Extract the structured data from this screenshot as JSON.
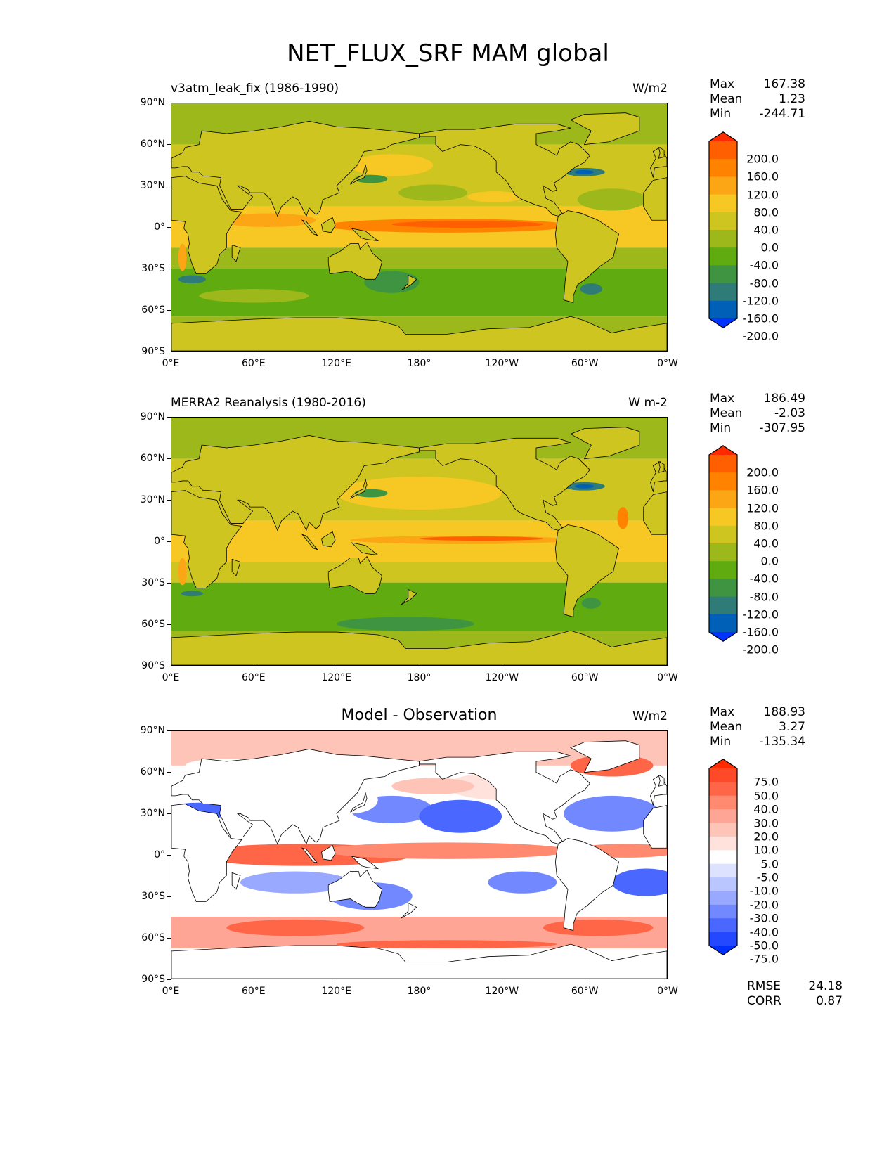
{
  "title": "NET_FLUX_SRF MAM global",
  "axes": {
    "x_ticks": [
      "0°E",
      "60°E",
      "120°E",
      "180°",
      "120°W",
      "60°W",
      "0°W"
    ],
    "y_ticks": [
      "90°N",
      "60°N",
      "30°N",
      "0°",
      "30°S",
      "60°S",
      "90°S"
    ]
  },
  "panels": [
    {
      "title": "v3atm_leak_fix (1986-1990)",
      "units": "W/m2",
      "stats": {
        "max_label": "Max",
        "max": "167.38",
        "mean_label": "Mean",
        "mean": "1.23",
        "min_label": "Min",
        "min": "-244.71"
      },
      "colorbar": {
        "labels": [
          "200.0",
          "160.0",
          "120.0",
          "80.0",
          "40.0",
          "0.0",
          "-40.0",
          "-80.0",
          "-120.0",
          "-160.0",
          "-200.0"
        ],
        "colors": [
          "#ff2a00",
          "#ff5f00",
          "#ff8200",
          "#fca515",
          "#f7c823",
          "#cfc521",
          "#9cb81a",
          "#5fab10",
          "#3e9440",
          "#2e7b78",
          "#0060b8",
          "#0033ff"
        ]
      }
    },
    {
      "title": "MERRA2 Reanalysis (1980-2016)",
      "units": "W m-2",
      "stats": {
        "max_label": "Max",
        "max": "186.49",
        "mean_label": "Mean",
        "mean": "-2.03",
        "min_label": "Min",
        "min": "-307.95"
      },
      "colorbar": {
        "labels": [
          "200.0",
          "160.0",
          "120.0",
          "80.0",
          "40.0",
          "0.0",
          "-40.0",
          "-80.0",
          "-120.0",
          "-160.0",
          "-200.0"
        ],
        "colors": [
          "#ff2a00",
          "#ff5f00",
          "#ff8200",
          "#fca515",
          "#f7c823",
          "#cfc521",
          "#9cb81a",
          "#5fab10",
          "#3e9440",
          "#2e7b78",
          "#0060b8",
          "#0033ff"
        ]
      }
    },
    {
      "title": "Model - Observation",
      "units": "W/m2",
      "stats": {
        "max_label": "Max",
        "max": "188.93",
        "mean_label": "Mean",
        "mean": "3.27",
        "min_label": "Min",
        "min": "-135.34"
      },
      "colorbar": {
        "labels": [
          "75.0",
          "50.0",
          "40.0",
          "30.0",
          "20.0",
          "10.0",
          "5.0",
          "-5.0",
          "-10.0",
          "-20.0",
          "-30.0",
          "-40.0",
          "-50.0",
          "-75.0"
        ],
        "colors": [
          "#ff2a00",
          "#ff4a2a",
          "#ff6648",
          "#ff8a70",
          "#ffa595",
          "#ffc4b8",
          "#ffe2dc",
          "#ffffff",
          "#dde3ff",
          "#bac6ff",
          "#98a9ff",
          "#7188ff",
          "#4a68ff",
          "#2448ff",
          "#0030ff"
        ]
      },
      "metrics": {
        "rmse_label": "RMSE",
        "rmse": "24.18",
        "corr_label": "CORR",
        "corr": "0.87"
      }
    }
  ]
}
